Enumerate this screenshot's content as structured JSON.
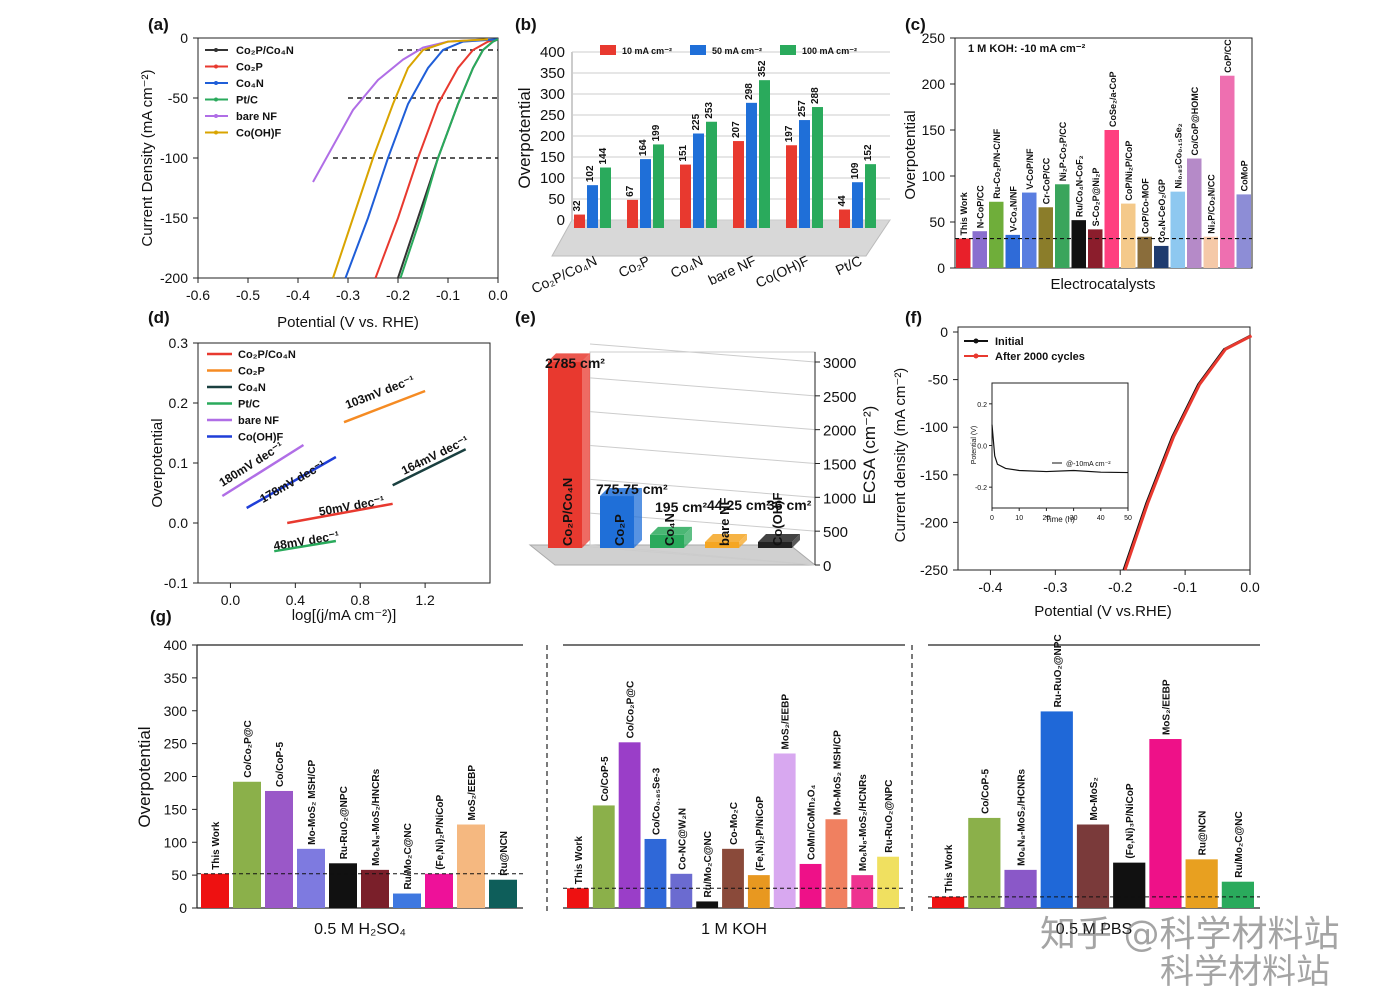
{
  "panels": {
    "a": "(a)",
    "b": "(b)",
    "c": "(c)",
    "d": "(d)",
    "e": "(e)",
    "f": "(f)",
    "g": "(g)"
  },
  "watermark": {
    "line1": "知乎 @科学材料站",
    "line2": "科学材料站"
  },
  "colors": {
    "red": "#e8392f",
    "orange": "#f5a623",
    "black": "#111111",
    "green": "#2aaa5c",
    "purple": "#b06ee6",
    "blue": "#1f5ed8",
    "gold": "#d9a400"
  },
  "chart_data": [
    {
      "id": "a",
      "type": "line",
      "title": "",
      "xlabel": "Potential (V vs. RHE)",
      "ylabel": "Current Density (mA cm⁻²)",
      "xlim": [
        -0.6,
        0.0
      ],
      "ylim": [
        -200,
        0
      ],
      "xticks": [
        "-0.6",
        "-0.5",
        "-0.4",
        "-0.3",
        "-0.2",
        "-0.1",
        "0.0"
      ],
      "yticks": [
        "0",
        "-50",
        "-100",
        "-150",
        "-200"
      ],
      "legend": [
        "Co₂P/Co₄N",
        "Co₂P",
        "Co₄N",
        "Pt/C",
        "bare NF",
        "Co(OH)F"
      ],
      "series": [
        {
          "name": "Co₂P/Co₄N",
          "color": "#333333",
          "x": [
            -0.2,
            -0.16,
            -0.12,
            -0.08,
            -0.05,
            -0.03,
            -0.01,
            0.0
          ],
          "y": [
            -200,
            -150,
            -100,
            -55,
            -25,
            -10,
            -3,
            -1
          ]
        },
        {
          "name": "Co₂P",
          "color": "#e8392f",
          "x": [
            -0.245,
            -0.2,
            -0.16,
            -0.12,
            -0.08,
            -0.05,
            -0.02,
            0.0
          ],
          "y": [
            -200,
            -150,
            -100,
            -55,
            -25,
            -10,
            -3,
            -1
          ]
        },
        {
          "name": "Co₄N",
          "color": "#1f5ed8",
          "x": [
            -0.305,
            -0.26,
            -0.22,
            -0.18,
            -0.14,
            -0.11,
            -0.07,
            0.0
          ],
          "y": [
            -200,
            -150,
            -100,
            -55,
            -25,
            -10,
            -3,
            -1
          ]
        },
        {
          "name": "Pt/C",
          "color": "#2aaa5c",
          "x": [
            -0.195,
            -0.155,
            -0.12,
            -0.08,
            -0.05,
            -0.03,
            -0.01,
            0.0
          ],
          "y": [
            -200,
            -150,
            -100,
            -55,
            -25,
            -10,
            -3,
            -1
          ]
        },
        {
          "name": "bare NF",
          "color": "#b06ee6",
          "x": [
            -0.37,
            -0.33,
            -0.29,
            -0.24,
            -0.19,
            -0.15,
            -0.1,
            -0.02
          ],
          "y": [
            -120,
            -90,
            -60,
            -35,
            -18,
            -8,
            -3,
            -1
          ]
        },
        {
          "name": "Co(OH)F",
          "color": "#d9a400",
          "x": [
            -0.33,
            -0.29,
            -0.25,
            -0.21,
            -0.18,
            -0.15,
            -0.1,
            -0.02
          ],
          "y": [
            -200,
            -150,
            -100,
            -55,
            -25,
            -10,
            -3,
            -1
          ]
        }
      ],
      "hlines": [
        {
          "y": -10,
          "x": [
            -0.2,
            0.0
          ]
        },
        {
          "y": -50,
          "x": [
            -0.3,
            0.0
          ]
        },
        {
          "y": -100,
          "x": [
            -0.33,
            0.0
          ]
        }
      ]
    },
    {
      "id": "b",
      "type": "bar",
      "ylabel": "Overpotential",
      "ylim": [
        0,
        400
      ],
      "yticks": [
        "0",
        "50",
        "100",
        "150",
        "200",
        "250",
        "300",
        "350",
        "400"
      ],
      "categories": [
        "Co₂P/Co₄N",
        "Co₂P",
        "Co₄N",
        "bare NF",
        "Co(OH)F",
        "Pt/C"
      ],
      "series": [
        {
          "name": "10 mA cm⁻²",
          "color": "#e8392f",
          "values": [
            32,
            67,
            151,
            207,
            197,
            44
          ]
        },
        {
          "name": "50 mA cm⁻²",
          "color": "#1f6fd8",
          "values": [
            102,
            164,
            225,
            298,
            257,
            109
          ]
        },
        {
          "name": "100 mA cm⁻²",
          "color": "#2aaa5c",
          "values": [
            144,
            199,
            253,
            352,
            288,
            152
          ]
        }
      ]
    },
    {
      "id": "c",
      "type": "bar",
      "title": "1 M KOH: -10 mA cm⁻²",
      "xlabel": "Electrocatalysts",
      "ylabel": "Overpotential",
      "ylim": [
        0,
        250
      ],
      "yticks": [
        "0",
        "50",
        "100",
        "150",
        "200",
        "250"
      ],
      "refline": 32,
      "categories": [
        "This Work",
        "N-CoP/CC",
        "Ru-Co₂P/N-C/NF",
        "V-Co₄N/NF",
        "V-CoP/NF",
        "Cr-CoP/CC",
        "Ni₂P-Co₂P/CC",
        "Ru/Co₄N-CoF₂",
        "S-Co₂P@Ni₂P",
        "CoSe₂/a-CoP",
        "CoP/Ni₂P/CoP",
        "CoP/Co-MOF",
        "Co₄N-CeO₂/GP",
        "Ni₀.₈₅Co₀.₁₅Se₂",
        "Co/CoP@HOMC",
        "Ni₂P/Co₂N/CC",
        "CoP/CC",
        "CoMoP"
      ],
      "values": [
        32,
        40,
        72,
        36,
        82,
        66,
        91,
        52,
        42,
        150,
        70,
        34,
        24,
        83,
        119,
        34,
        209,
        80
      ],
      "colors": [
        "#e8202a",
        "#8a6fcf",
        "#6fae3a",
        "#2f6bd8",
        "#5a7ee0",
        "#8b7d2a",
        "#3aa55c",
        "#111111",
        "#8b1d2c",
        "#ff3f7f",
        "#f4c98a",
        "#8a6d3b",
        "#1f3b6f",
        "#8ec8f0",
        "#b58ac8",
        "#f5c9a8",
        "#ee6fb0",
        "#8d8dd6"
      ],
      "labelcolors": [
        "#e8202a",
        "#6a50c0",
        "#4f8e2a",
        "#2f6bd8",
        "#2f5ed0",
        "#6b5d1a",
        "#1a8a3c",
        "#111111",
        "#8b1d2c",
        "#ff2f6f",
        "#e6a85a",
        "#6a4d1b",
        "#1f3b6f",
        "#5aa8e0",
        "#a070b8",
        "#e8a888",
        "#e84f98",
        "#6d6dc6"
      ]
    },
    {
      "id": "d",
      "type": "line",
      "xlabel": "log[(j/mA cm⁻²)]",
      "ylabel": "Overpotential",
      "xlim": [
        -0.2,
        1.6
      ],
      "ylim": [
        -0.1,
        0.3
      ],
      "xticks": [
        "0.0",
        "0.4",
        "0.8",
        "1.2"
      ],
      "yticks": [
        "0.3",
        "0.2",
        "0.1",
        "0.0",
        "-0.1"
      ],
      "legend": [
        "Co₂P/Co₄N",
        "Co₂P",
        "Co₄N",
        "Pt/C",
        "bare NF",
        "Co(OH)F"
      ],
      "series": [
        {
          "name": "Co₂P/Co₄N",
          "color": "#e8392f",
          "x": [
            0.35,
            1.0
          ],
          "y": [
            0.0,
            0.032
          ],
          "label": "50mV dec⁻¹",
          "lx": 0.55,
          "ly": 0.012
        },
        {
          "name": "Co₂P",
          "color": "#f58b23",
          "x": [
            0.7,
            1.2
          ],
          "y": [
            0.168,
            0.22
          ],
          "label": "103mV dec⁻¹",
          "lx": 0.72,
          "ly": 0.19
        },
        {
          "name": "Co₄N",
          "color": "#1a4040",
          "x": [
            1.0,
            1.45
          ],
          "y": [
            0.063,
            0.123
          ],
          "label": "164mV dec⁻¹",
          "lx": 1.07,
          "ly": 0.08
        },
        {
          "name": "Pt/C",
          "color": "#2aaa5c",
          "x": [
            0.27,
            0.65
          ],
          "y": [
            -0.047,
            -0.03
          ],
          "label": "48mV dec⁻¹",
          "lx": 0.27,
          "ly": -0.045
        },
        {
          "name": "bare NF",
          "color": "#b06ee6",
          "x": [
            -0.05,
            0.45
          ],
          "y": [
            0.045,
            0.13
          ],
          "label": "180mV dec⁻¹",
          "lx": -0.05,
          "ly": 0.06
        },
        {
          "name": "Co(OH)F",
          "color": "#1f3ed8",
          "x": [
            0.1,
            0.65
          ],
          "y": [
            0.025,
            0.11
          ],
          "label": "178mV dec⁻¹",
          "lx": 0.2,
          "ly": 0.033
        }
      ]
    },
    {
      "id": "e",
      "type": "bar",
      "ylabel": "ECSA (cm⁻²)",
      "ylim": [
        0,
        3000
      ],
      "yticks": [
        "0",
        "500",
        "1000",
        "1500",
        "2000",
        "2500",
        "3000"
      ],
      "categories": [
        "Co₂P/Co₄N",
        "Co₂P",
        "Co₄N",
        "bare NF",
        "Co(OH)F"
      ],
      "values": [
        2785,
        775.75,
        195,
        44.25,
        36
      ],
      "labels": [
        "2785 cm²",
        "775.75 cm²",
        "195 cm²",
        "44.25 cm²",
        "36 cm²"
      ],
      "colors": [
        "#e8392f",
        "#1f6fd8",
        "#2aaa5c",
        "#f5a623",
        "#222222"
      ],
      "labelcolors": [
        "#e8202a",
        "#1f3ed8",
        "#2aaa5c",
        "#f5a623",
        "#222222"
      ]
    },
    {
      "id": "f",
      "type": "line",
      "xlabel": "Potential (V vs.RHE)",
      "ylabel": "Current density (mA cm⁻²)",
      "xlim": [
        -0.45,
        0.0
      ],
      "ylim": [
        -250,
        0
      ],
      "xticks": [
        "-0.4",
        "-0.3",
        "-0.2",
        "-0.1",
        "0.0"
      ],
      "yticks": [
        "0",
        "-50",
        "-100",
        "-150",
        "-200",
        "-250"
      ],
      "legend": [
        "Initial",
        "After 2000 cycles"
      ],
      "series": [
        {
          "name": "Initial",
          "color": "#111111",
          "x": [
            -0.195,
            -0.16,
            -0.12,
            -0.08,
            -0.04,
            0.0
          ],
          "y": [
            -250,
            -180,
            -110,
            -55,
            -18,
            -4
          ]
        },
        {
          "name": "After 2000 cycles",
          "color": "#e8392f",
          "x": [
            -0.195,
            -0.16,
            -0.12,
            -0.08,
            -0.04,
            0.0
          ],
          "y": [
            -250,
            -180,
            -110,
            -55,
            -18,
            -4
          ]
        }
      ],
      "inset": {
        "xlabel": "Time (h)",
        "ylabel": "Potential (V)",
        "xticks": [
          "0",
          "10",
          "20",
          "30",
          "40",
          "50"
        ],
        "yticks": [
          "0.2",
          "0.0",
          "-0.2"
        ],
        "legend": "@-10mA cm⁻²",
        "x": [
          0,
          1,
          2,
          5,
          10,
          20,
          30,
          40,
          50
        ],
        "y": [
          0.1,
          -0.05,
          -0.09,
          -0.11,
          -0.12,
          -0.125,
          -0.12,
          -0.128,
          -0.13
        ]
      }
    },
    {
      "id": "g",
      "type": "bar",
      "ylabel": "Overpotential",
      "ylim": [
        0,
        400
      ],
      "yticks": [
        "0",
        "50",
        "100",
        "150",
        "200",
        "250",
        "300",
        "350",
        "400"
      ],
      "groups": [
        {
          "label": "0.5 M H₂SO₄",
          "refline": 52,
          "categories": [
            "This Work",
            "Co/Co₂P@C",
            "Co/CoP-5",
            "Mo-MoS₂ MSH/CP",
            "Ru-RuO₂@NPC",
            "Mo₆N₈-MoS₂/HNCRs",
            "Ru/Mo₂C@NC",
            "(Fe,Ni)₂P/NiCoP",
            "MoS₂/EEBP",
            "Ru@NCN"
          ],
          "values": [
            52,
            192,
            178,
            90,
            68,
            58,
            22,
            52,
            127,
            43
          ],
          "colors": [
            "#ee1111",
            "#8bb04a",
            "#9a58c8",
            "#7e7ae0",
            "#111111",
            "#7a1f2a",
            "#3f78e0",
            "#ee1199",
            "#f5b880",
            "#0e5e5a"
          ],
          "labelcolors": [
            "#ee1111",
            "#6c9a2a",
            "#8a48c0",
            "#6a6ad0",
            "#111111",
            "#7a1f2a",
            "#2f68d8",
            "#e01189",
            "#f0a860",
            "#0e5e5a"
          ]
        },
        {
          "label": "1 M KOH",
          "refline": 30,
          "categories": [
            "This Work",
            "Co/CoP-5",
            "Co/Co₂P@C",
            "Co/Co₀.₈₅Se-3",
            "Co-NC@W₂N",
            "Ru/Mo₂C@NC",
            "Co-Mo₂C",
            "(Fe,Ni)₂P/NiCoP",
            "MoS₂/EEBP",
            "CoMn/CoMn₂O₄",
            "Mo-MoS₂ MSH/CP",
            "Mo₆N₈-MoS₂/HCNRs",
            "Ru-RuO₂@NPC"
          ],
          "values": [
            30,
            156,
            252,
            105,
            52,
            10,
            90,
            50,
            235,
            67,
            135,
            50,
            78
          ],
          "colors": [
            "#ee1111",
            "#8bb04a",
            "#9a3ec8",
            "#2f68d8",
            "#6b6bd0",
            "#111111",
            "#8a4a3a",
            "#e89820",
            "#d8a8f0",
            "#ee1188",
            "#f08060",
            "#ee3390",
            "#f0e060"
          ],
          "labelcolors": [
            "#ee1111",
            "#6c9a2a",
            "#8a2eb8",
            "#1f58c8",
            "#5b5bc0",
            "#111111",
            "#7a3a2a",
            "#d88810",
            "#c898e0",
            "#e01178",
            "#e07050",
            "#e02380",
            "#d8c840"
          ]
        },
        {
          "label": "0.5 M PBS",
          "refline": 17,
          "categories": [
            "This Work",
            "Co/CoP-5",
            "Mo₆N₈-MoS₂/HCNRs",
            "Ru-RuO₂@NPC",
            "Mo-MoS₂",
            "(Fe,Ni)₃P/NiCoP",
            "MoS₂/EEBP",
            "Ru@NCN",
            "Ru/Mo₂C@NC"
          ],
          "values": [
            17,
            137,
            58,
            299,
            127,
            69,
            257,
            74,
            40
          ],
          "colors": [
            "#ee1111",
            "#8bb04a",
            "#8a58c8",
            "#1f68d8",
            "#7a3a3a",
            "#111111",
            "#ee1188",
            "#e8a020",
            "#2aaa5c"
          ],
          "labelcolors": [
            "#ee1111",
            "#6c9a2a",
            "#7a48b8",
            "#1f58c8",
            "#6a2a2a",
            "#111111",
            "#e01178",
            "#d89010",
            "#1a9a4c"
          ]
        }
      ]
    }
  ]
}
